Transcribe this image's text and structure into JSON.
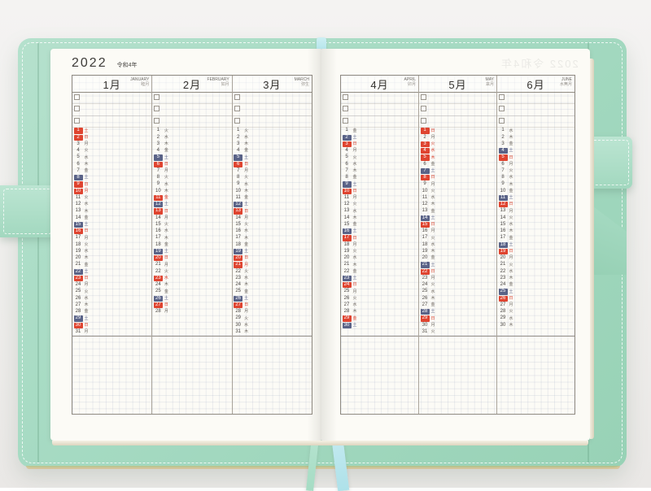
{
  "notebook": {
    "year": "2022",
    "era": "令和4年",
    "ghost_bleedthrough": "2022  令和4年",
    "weekday_kanji": [
      "日",
      "月",
      "火",
      "水",
      "木",
      "金",
      "土"
    ],
    "todo_rows_per_month": 3,
    "colors": {
      "sunday_holiday_red": "#df4430",
      "saturday_navy": "#5a6387",
      "cover_mint": "#a5dac2",
      "ribbon_blue": "#aee1e9",
      "paper": "#fcfbf6"
    },
    "pages": [
      {
        "side": "left",
        "months": [
          {
            "label_jp": "1月",
            "label_en": "JANUARY",
            "label_trad": "睦月",
            "num_days": 31,
            "first_weekday": 6,
            "red_days": [
              1,
              2,
              9,
              10,
              16,
              23,
              30
            ],
            "navy_days": [
              8,
              15,
              22,
              29
            ]
          },
          {
            "label_jp": "2月",
            "label_en": "FEBRUARY",
            "label_trad": "如月",
            "num_days": 28,
            "first_weekday": 2,
            "red_days": [
              6,
              11,
              13,
              20,
              23,
              27
            ],
            "navy_days": [
              5,
              12,
              19,
              26
            ]
          },
          {
            "label_jp": "3月",
            "label_en": "MARCH",
            "label_trad": "弥生",
            "num_days": 31,
            "first_weekday": 2,
            "red_days": [
              6,
              13,
              20,
              21,
              27
            ],
            "navy_days": [
              5,
              12,
              19,
              26
            ]
          }
        ]
      },
      {
        "side": "right",
        "months": [
          {
            "label_jp": "4月",
            "label_en": "APRIL",
            "label_trad": "卯月",
            "num_days": 30,
            "first_weekday": 5,
            "red_days": [
              3,
              10,
              17,
              24,
              29
            ],
            "navy_days": [
              2,
              9,
              16,
              23,
              30
            ]
          },
          {
            "label_jp": "5月",
            "label_en": "MAY",
            "label_trad": "皐月",
            "num_days": 31,
            "first_weekday": 0,
            "red_days": [
              1,
              3,
              4,
              5,
              8,
              15,
              22,
              29
            ],
            "navy_days": [
              7,
              14,
              21,
              28
            ]
          },
          {
            "label_jp": "6月",
            "label_en": "JUNE",
            "label_trad": "水無月",
            "num_days": 30,
            "first_weekday": 3,
            "red_days": [
              5,
              12,
              19,
              26
            ],
            "navy_days": [
              4,
              11,
              18,
              25
            ]
          }
        ]
      }
    ]
  }
}
